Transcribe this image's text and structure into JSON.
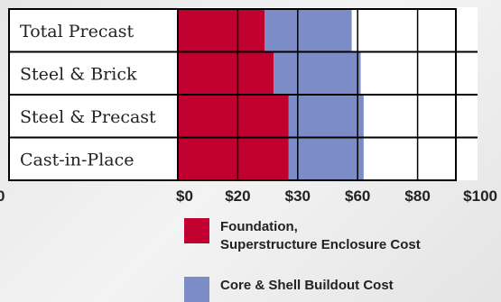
{
  "chart_data": {
    "type": "bar",
    "orientation": "horizontal",
    "stacked": true,
    "categories": [
      "Total Precast",
      "Steel & Brick",
      "Steel & Precast",
      "Cast-in-Place"
    ],
    "series": [
      {
        "name": "Foundation, Superstructure Enclosure Cost",
        "legend_lines": [
          "Foundation,",
          "Superstructure Enclosure Cost"
        ],
        "color": "#c0002f",
        "values": [
          29,
          32,
          37,
          37
        ]
      },
      {
        "name": "Core & Shell Buildout Cost",
        "legend_lines": [
          "Core & Shell Buildout Cost"
        ],
        "color": "#7b8cc7",
        "values": [
          29,
          29,
          25,
          25
        ]
      }
    ],
    "xticks": [
      "$0",
      "$20",
      "$30",
      "$60",
      "$80",
      "$100"
    ],
    "left_tick": "0",
    "xlim": [
      0,
      100
    ],
    "grid": true,
    "legend_position": "bottom"
  }
}
